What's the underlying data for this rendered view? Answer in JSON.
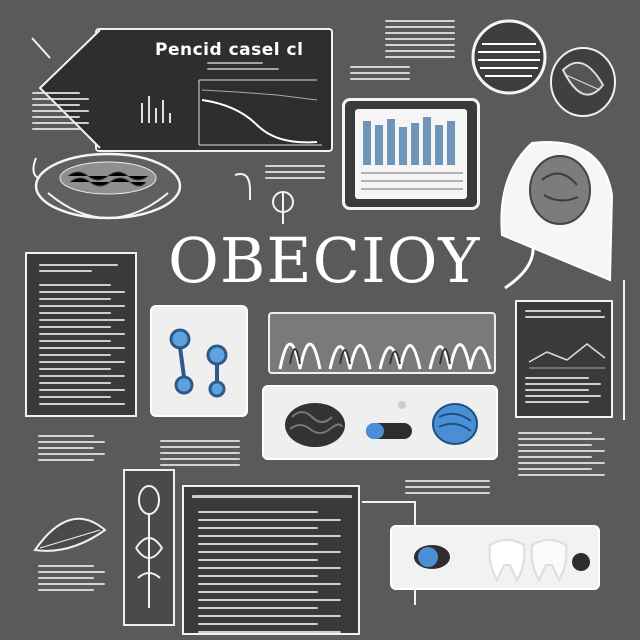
{
  "header_label": "Pencid casel cl",
  "main_title": "OBECIOY",
  "colors": {
    "background": "#5a5a5a",
    "panel_dark": "#2e2e2e",
    "line": "#f2f2f2",
    "accent_blue": "#4a8fd6"
  },
  "icons": [
    "tablet-chart-icon",
    "brain-icon",
    "molecule-icon",
    "kidney-icon",
    "seed-icon",
    "pill-icon",
    "tooth-icon",
    "anatomy-body-icon",
    "tissue-strip-icon",
    "plate-icon"
  ]
}
